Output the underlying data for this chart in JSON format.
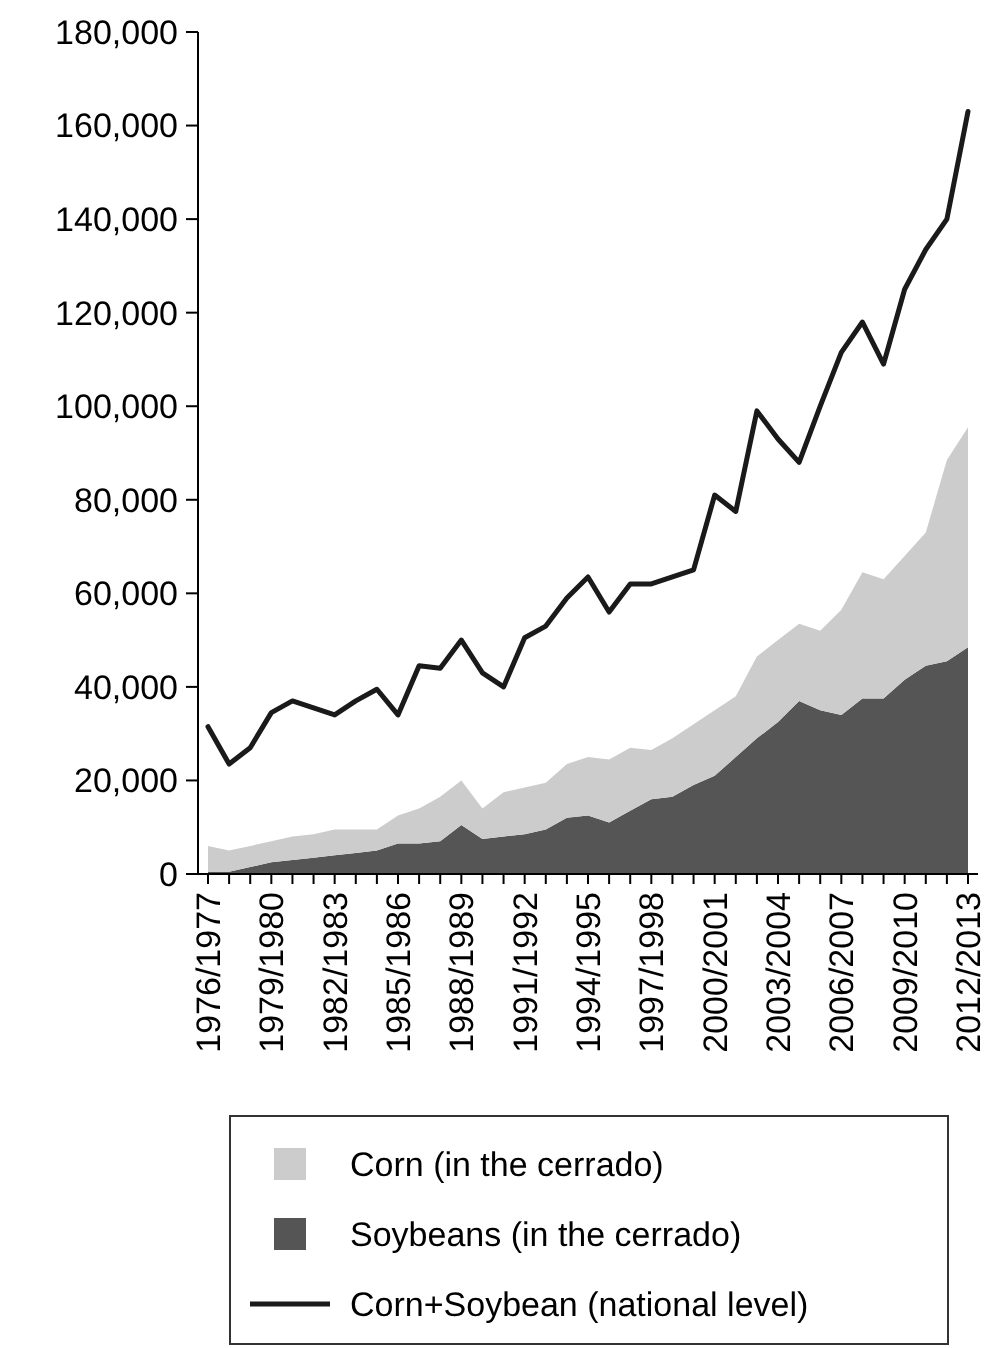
{
  "chart_data": {
    "type": "area",
    "stacked": true,
    "categories": [
      "1976/1977",
      null,
      null,
      "1979/1980",
      null,
      null,
      "1982/1983",
      null,
      null,
      "1985/1986",
      null,
      null,
      "1988/1989",
      null,
      null,
      "1991/1992",
      null,
      null,
      "1994/1995",
      null,
      null,
      "1997/1998",
      null,
      null,
      "2000/2001",
      null,
      null,
      "2003/2004",
      null,
      null,
      "2006/2007",
      null,
      null,
      "2009/2010",
      null,
      null,
      "2012/2013"
    ],
    "ylim": [
      0,
      180000
    ],
    "yticks": [
      {
        "value": 0,
        "label": "0"
      },
      {
        "value": 20000,
        "label": "20,000"
      },
      {
        "value": 40000,
        "label": "40,000"
      },
      {
        "value": 60000,
        "label": "60,000"
      },
      {
        "value": 80000,
        "label": "80,000"
      },
      {
        "value": 100000,
        "label": "100,000"
      },
      {
        "value": 120000,
        "label": "120,000"
      },
      {
        "value": 140000,
        "label": "140,000"
      },
      {
        "value": 160000,
        "label": "160,000"
      },
      {
        "value": 180000,
        "label": "180,000"
      }
    ],
    "grid": false,
    "legend": "bottom",
    "series": [
      {
        "name": "Soybeans (in the cerrado)",
        "color": "#555555",
        "values": [
          500,
          500,
          1500,
          2500,
          3000,
          3500,
          4000,
          4500,
          5000,
          6500,
          6500,
          7000,
          10500,
          7500,
          8000,
          8500,
          9500,
          12000,
          12500,
          11000,
          13500,
          16000,
          16500,
          19000,
          21000,
          25000,
          29000,
          32500,
          37000,
          35000,
          34000,
          37500,
          37500,
          41500,
          44500,
          45500,
          48500
        ]
      },
      {
        "name": "Corn (in the cerrado)",
        "color": "#cccccc",
        "values": [
          5500,
          4500,
          4500,
          4500,
          5000,
          5000,
          5500,
          5000,
          4500,
          6000,
          7500,
          9500,
          9500,
          6500,
          9500,
          10000,
          10000,
          11500,
          12500,
          13500,
          13500,
          10500,
          12500,
          13000,
          14000,
          13000,
          17500,
          17500,
          16500,
          17000,
          22500,
          27000,
          25500,
          26500,
          28500,
          43000,
          47000
        ]
      },
      {
        "name": "Corn+Soybean (national level)",
        "type": "line",
        "color": "#1a1a1a",
        "values": [
          31500,
          23500,
          27000,
          34500,
          37000,
          35500,
          34000,
          37000,
          39500,
          34000,
          44500,
          44000,
          50000,
          43000,
          40000,
          50500,
          53000,
          59000,
          63500,
          56000,
          62000,
          62000,
          63500,
          65000,
          81000,
          77500,
          99000,
          93000,
          88000,
          100000,
          111500,
          118000,
          109000,
          125000,
          133500,
          140000,
          163000
        ]
      }
    ]
  }
}
